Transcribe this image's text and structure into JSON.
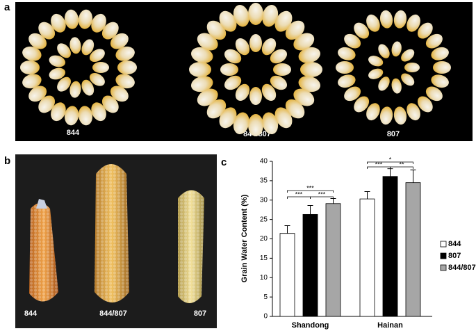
{
  "panels": {
    "a": {
      "label": "a",
      "captions": [
        "844",
        "844/807",
        "807"
      ]
    },
    "b": {
      "label": "b",
      "captions": [
        "844",
        "844/807",
        "807"
      ]
    },
    "c": {
      "label": "c"
    }
  },
  "chart_data": {
    "type": "bar",
    "ylabel": "Grain Water Content (%)",
    "categories": [
      "Shandong",
      "Hainan"
    ],
    "series": [
      {
        "name": "844",
        "color": "#ffffff",
        "values": [
          21.4,
          30.3
        ],
        "errors": [
          2.0,
          1.9
        ]
      },
      {
        "name": "807",
        "color": "#000000",
        "values": [
          26.3,
          36.1
        ],
        "errors": [
          2.3,
          2.0
        ]
      },
      {
        "name": "844/807",
        "color": "#a6a6a6",
        "values": [
          29.1,
          34.5
        ],
        "errors": [
          1.3,
          3.3
        ]
      }
    ],
    "annotations": [
      {
        "category": "Shandong",
        "texts": [
          "***",
          "***",
          "***"
        ]
      },
      {
        "category": "Hainan",
        "texts": [
          "***",
          "**",
          "*"
        ]
      }
    ],
    "ylim": [
      0,
      40
    ],
    "yticks": [
      0,
      5,
      10,
      15,
      20,
      25,
      30,
      35,
      40
    ],
    "grid": false,
    "legend": "right"
  }
}
